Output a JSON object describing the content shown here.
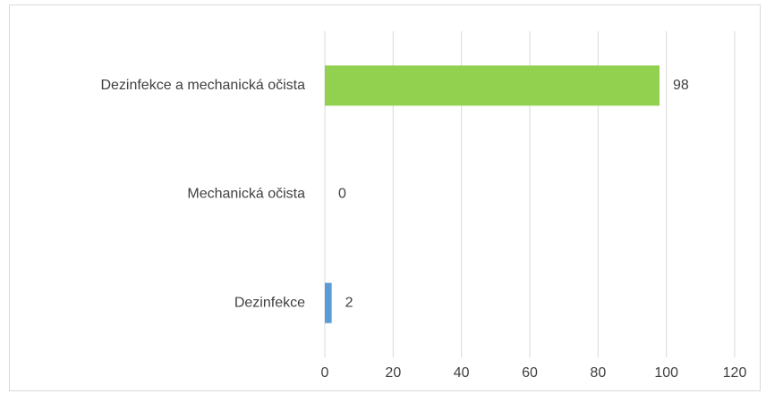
{
  "chart_data": {
    "type": "hbar",
    "categories": [
      "Dezinfekce a mechanická očista",
      "Mechanická očista",
      "Dezinfekce"
    ],
    "values": [
      98,
      0,
      2
    ],
    "colors": [
      "#92d050",
      "#5b9bd5",
      "#5b9bd5"
    ],
    "xlim": [
      0,
      120
    ],
    "xticks": [
      0,
      20,
      40,
      60,
      80,
      100,
      120
    ],
    "grid": true
  }
}
